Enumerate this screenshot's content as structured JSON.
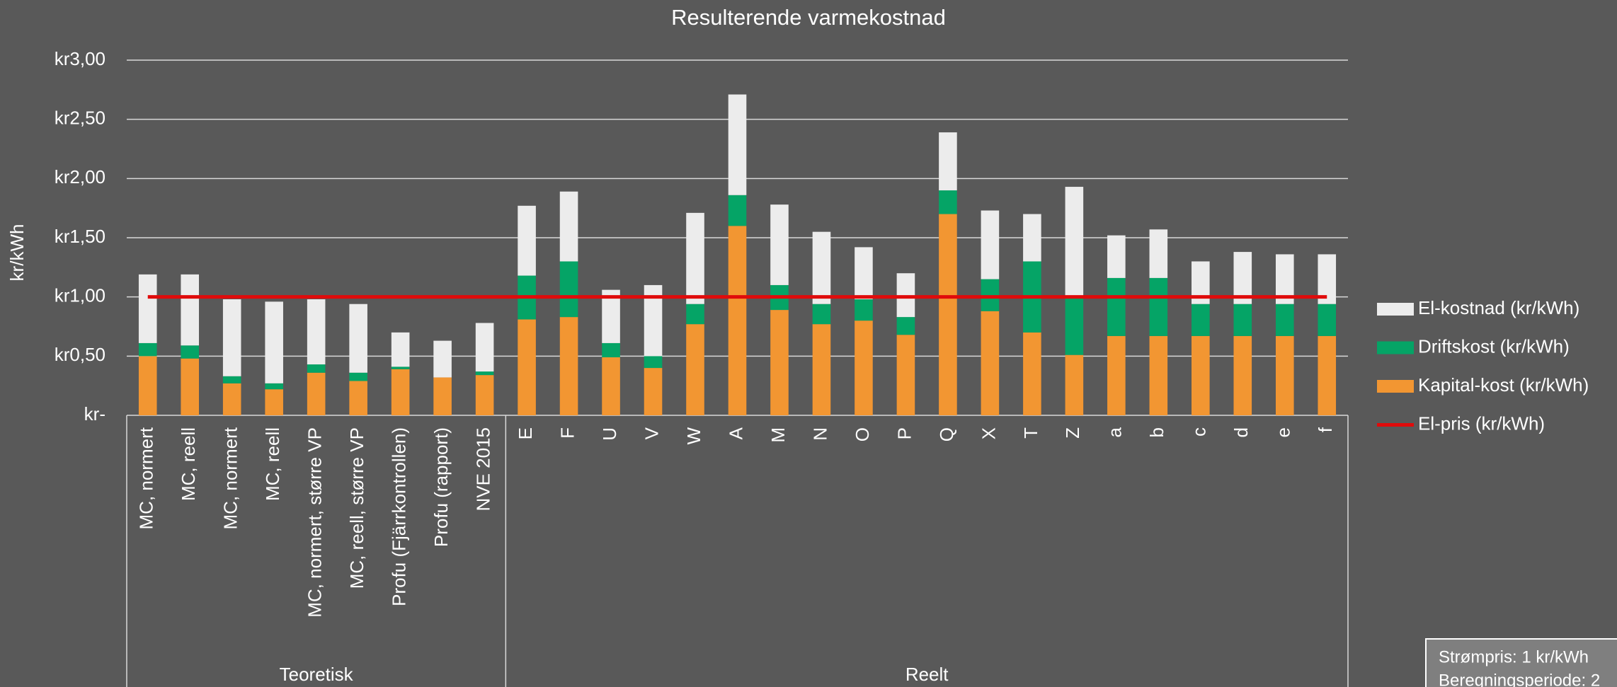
{
  "chart_data": {
    "type": "bar",
    "stacked": true,
    "title": "Resulterende varmekostnad",
    "y_label": "kr/kWh",
    "categories": [
      "MC, normert",
      "MC, reell",
      "MC, normert",
      "MC, reell",
      "MC, normert, større VP",
      "MC, reell, større VP",
      "Profu (Fjärrkontrollen)",
      "Profu (rapport)",
      "NVE 2015",
      "E",
      "F",
      "U",
      "V",
      "W",
      "A",
      "M",
      "N",
      "O",
      "P",
      "Q",
      "X",
      "T",
      "Z",
      "a",
      "b",
      "c",
      "d",
      "e",
      "f"
    ],
    "groups": [
      {
        "name": "Teoretisk",
        "count": 9
      },
      {
        "name": "Reelt",
        "count": 20
      }
    ],
    "series": [
      {
        "name": "Kapital-kost (kr/kWh)",
        "color": "#f29632",
        "values": [
          0.5,
          0.48,
          0.27,
          0.22,
          0.36,
          0.29,
          0.39,
          0.32,
          0.34,
          0.81,
          0.83,
          0.49,
          0.4,
          0.77,
          1.6,
          0.89,
          0.77,
          0.8,
          0.68,
          1.7,
          0.88,
          0.7,
          0.51,
          0.67,
          0.67,
          0.67,
          0.67,
          0.67,
          0.67
        ]
      },
      {
        "name": "Driftskost (kr/kWh)",
        "color": "#05a466",
        "values": [
          0.11,
          0.11,
          0.06,
          0.05,
          0.07,
          0.07,
          0.02,
          0,
          0.03,
          0.37,
          0.47,
          0.12,
          0.1,
          0.17,
          0.26,
          0.21,
          0.17,
          0.18,
          0.15,
          0.2,
          0.27,
          0.6,
          0.48,
          0.49,
          0.49,
          0.27,
          0.27,
          0.27,
          0.27
        ]
      },
      {
        "name": "El-kostnad (kr/kWh)",
        "color": "#ececec",
        "values": [
          0.58,
          0.6,
          0.65,
          0.69,
          0.55,
          0.58,
          0.29,
          0.31,
          0.41,
          0.59,
          0.59,
          0.45,
          0.6,
          0.77,
          0.85,
          0.68,
          0.61,
          0.44,
          0.37,
          0.49,
          0.58,
          0.4,
          0.94,
          0.36,
          0.41,
          0.36,
          0.44,
          0.42,
          0.42
        ]
      },
      {
        "name": "El-pris (kr/kWh)",
        "color": "#e00b0b",
        "type": "line",
        "values": [
          1,
          1,
          1,
          1,
          1,
          1,
          1,
          1,
          1,
          1,
          1,
          1,
          1,
          1,
          1,
          1,
          1,
          1,
          1,
          1,
          1,
          1,
          1,
          1,
          1,
          1,
          1,
          1,
          1
        ]
      }
    ],
    "ylim": [
      0,
      3
    ],
    "yticks": [
      {
        "value": 0,
        "label": "kr-"
      },
      {
        "value": 0.5,
        "label": "kr0,50"
      },
      {
        "value": 1,
        "label": "kr1,00"
      },
      {
        "value": 1.5,
        "label": "kr1,50"
      },
      {
        "value": 2,
        "label": "kr2,00"
      },
      {
        "value": 2.5,
        "label": "kr2,50"
      },
      {
        "value": 3,
        "label": "kr3,00"
      }
    ],
    "grid": true,
    "legend": "right",
    "annotation": [
      "Strømpris: 1 kr/kWh",
      "Beregningsperiode: 2"
    ]
  }
}
